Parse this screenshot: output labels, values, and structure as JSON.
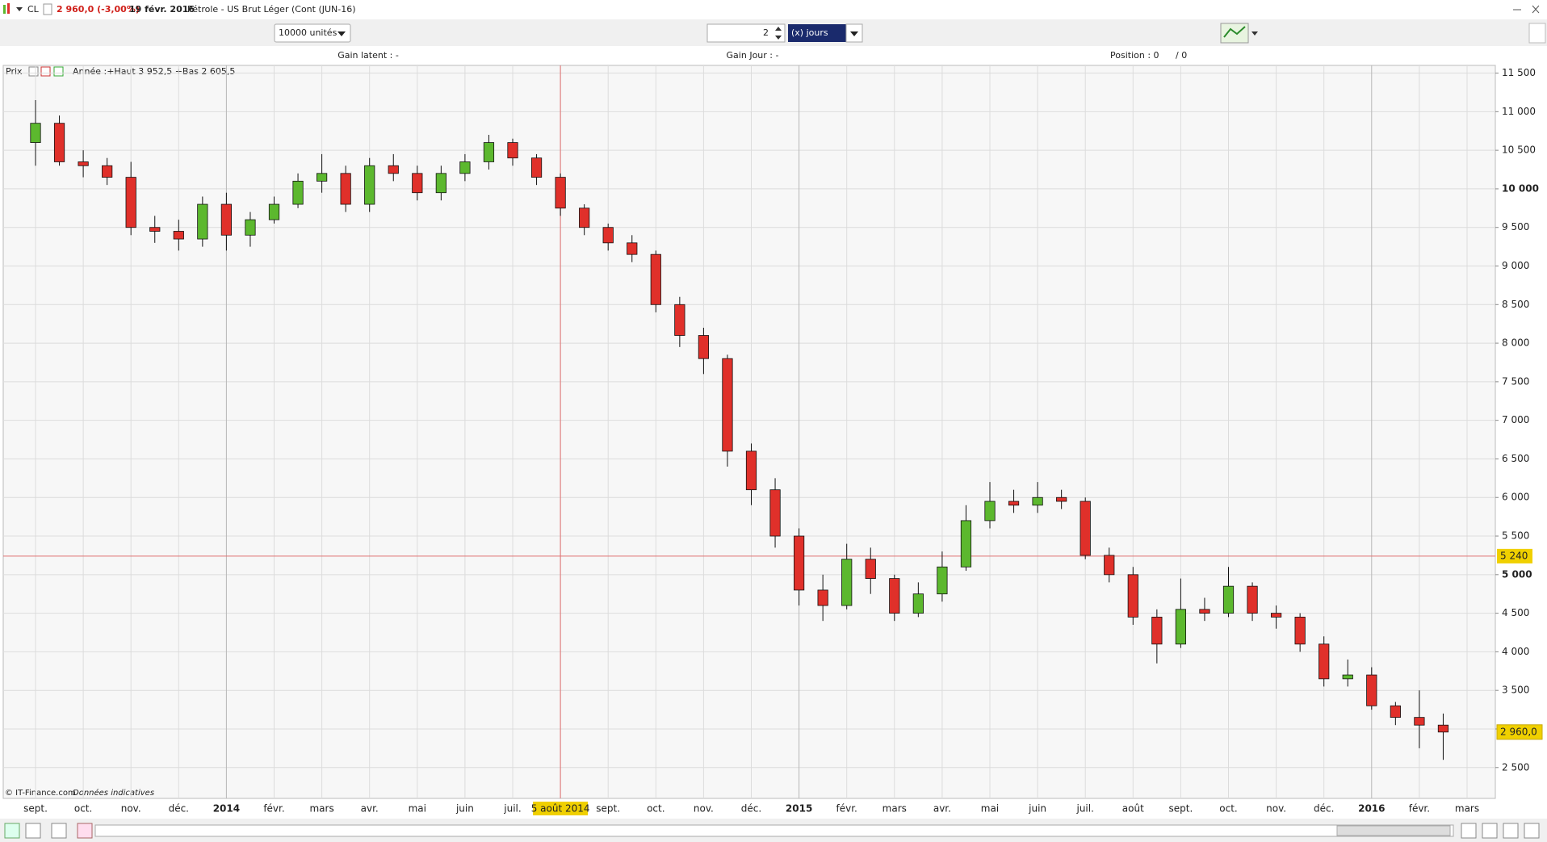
{
  "title_bar": {
    "symbol": "CL",
    "last": "2 960,0 (-3,00%)",
    "date": "19 févr. 2016",
    "name": "Pétrole - US Brut Léger (Cont (JUN-16)"
  },
  "toolbar": {
    "quantity": "10000 unités",
    "period_count": "2",
    "period_unit": "(x) jours"
  },
  "status": {
    "gain_latent": "Gain latent : -",
    "gain_jour": "Gain Jour : -",
    "position": "Position : 0",
    "position_sep": "/ 0"
  },
  "chart_data": {
    "type": "candlestick",
    "legend": "Prix",
    "legend_info": "Année :+Haut 3 952,5 +Bas 2 605,5",
    "copyright": "© IT-Finance.com",
    "note": "Données indicatives",
    "categories": [
      "sept.",
      null,
      "oct.",
      null,
      "nov.",
      null,
      "déc.",
      null,
      "2014",
      null,
      "févr.",
      null,
      "mars",
      null,
      "avr.",
      null,
      "mai",
      null,
      "juin",
      null,
      "juil.",
      null,
      "5 août 2014",
      null,
      "sept.",
      null,
      "oct.",
      null,
      "nov.",
      null,
      "déc.",
      null,
      "2015",
      null,
      "févr.",
      null,
      "mars",
      null,
      "avr.",
      null,
      "mai",
      null,
      "juin",
      null,
      "juil.",
      null,
      "août",
      null,
      "sept.",
      null,
      "oct.",
      null,
      "nov.",
      null,
      "déc.",
      null,
      "2016",
      null,
      "févr.",
      null,
      "mars"
    ],
    "open": [
      10600,
      10850,
      10350,
      10300,
      10150,
      9500,
      9450,
      9350,
      9800,
      9400,
      9600,
      9800,
      10100,
      10200,
      9800,
      10300,
      10200,
      9950,
      10200,
      10350,
      10600,
      10400,
      10150,
      9750,
      9500,
      9300,
      9150,
      8500,
      8100,
      7800,
      6600,
      6100,
      5500,
      4800,
      4600,
      5200,
      4950,
      4500,
      4750,
      5100,
      5700,
      5950,
      5900,
      6000,
      5950,
      5250,
      5000,
      4450,
      4100,
      4550,
      4500,
      4850,
      4500,
      4450,
      4100,
      3650,
      3700,
      3300,
      3150,
      3050,
      null
    ],
    "high": [
      11150,
      10950,
      10500,
      10400,
      10350,
      9650,
      9600,
      9900,
      9950,
      9700,
      9900,
      10200,
      10450,
      10300,
      10400,
      10450,
      10300,
      10300,
      10450,
      10700,
      10650,
      10450,
      10200,
      9800,
      9550,
      9400,
      9200,
      8600,
      8200,
      7850,
      6700,
      6250,
      5600,
      5000,
      5400,
      5350,
      5000,
      4900,
      5300,
      5900,
      6200,
      6100,
      6200,
      6100,
      6000,
      5350,
      5100,
      4550,
      4950,
      4700,
      5100,
      4900,
      4600,
      4500,
      4200,
      3900,
      3800,
      3350,
      3500,
      3200,
      null
    ],
    "low": [
      10300,
      10300,
      10150,
      10050,
      9400,
      9300,
      9200,
      9250,
      9200,
      9250,
      9550,
      9750,
      9950,
      9700,
      9700,
      10100,
      9850,
      9850,
      10100,
      10250,
      10300,
      10050,
      9650,
      9400,
      9200,
      9050,
      8400,
      7950,
      7600,
      6400,
      5900,
      5350,
      4600,
      4400,
      4550,
      4750,
      4400,
      4450,
      4650,
      5050,
      5600,
      5800,
      5800,
      5850,
      5200,
      4900,
      4350,
      3850,
      4050,
      4400,
      4450,
      4400,
      4300,
      4000,
      3550,
      3550,
      3250,
      3050,
      2750,
      2600,
      null
    ],
    "close": [
      10850,
      10350,
      10300,
      10150,
      9500,
      9450,
      9350,
      9800,
      9400,
      9600,
      9800,
      10100,
      10200,
      9800,
      10300,
      10200,
      9950,
      10200,
      10350,
      10600,
      10400,
      10150,
      9750,
      9500,
      9300,
      9150,
      8500,
      8100,
      7800,
      6600,
      6100,
      5500,
      4800,
      4600,
      5200,
      4950,
      4500,
      4750,
      5100,
      5700,
      5950,
      5900,
      6000,
      5950,
      5250,
      5000,
      4450,
      4100,
      4550,
      4500,
      4850,
      4500,
      4450,
      4100,
      3650,
      3700,
      3300,
      3150,
      3050,
      2960,
      null
    ],
    "up_color": "#5cb82e",
    "down_color": "#e0302a",
    "ylim": [
      2100,
      11600
    ],
    "yticks": [
      {
        "value": 2500,
        "label": "2 500"
      },
      {
        "value": 3000,
        "label": "3 000"
      },
      {
        "value": 3500,
        "label": "3 500"
      },
      {
        "value": 4000,
        "label": "4 000"
      },
      {
        "value": 4500,
        "label": "4 500"
      },
      {
        "value": 5000,
        "label": "5 000"
      },
      {
        "value": 5500,
        "label": "5 500"
      },
      {
        "value": 6000,
        "label": "6 000"
      },
      {
        "value": 6500,
        "label": "6 500"
      },
      {
        "value": 7000,
        "label": "7 000"
      },
      {
        "value": 7500,
        "label": "7 500"
      },
      {
        "value": 8000,
        "label": "8 000"
      },
      {
        "value": 8500,
        "label": "8 500"
      },
      {
        "value": 9000,
        "label": "9 000"
      },
      {
        "value": 9500,
        "label": "9 500"
      },
      {
        "value": 10000,
        "label": "10 000"
      },
      {
        "value": 10500,
        "label": "10 500"
      },
      {
        "value": 11000,
        "label": "11 000"
      },
      {
        "value": 11500,
        "label": "11 500"
      }
    ],
    "cursor": {
      "value": 5240,
      "label": "5 240"
    },
    "last_price": {
      "value": 2960,
      "label": "2 960,0"
    },
    "grid": true
  }
}
